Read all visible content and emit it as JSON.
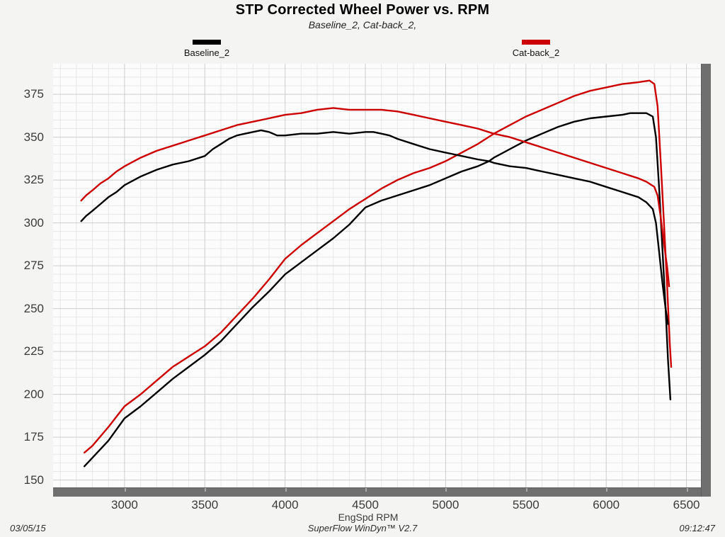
{
  "header": {
    "title": "STP Corrected Wheel Power vs. RPM",
    "subtitle": "Baseline_2, Cat-back_2,"
  },
  "legend": [
    {
      "label": "Baseline_2",
      "color": "#000000"
    },
    {
      "label": "Cat-back_2",
      "color": "#cc0000"
    }
  ],
  "axis": {
    "x_title": "EngSpd RPM"
  },
  "footer": {
    "date": "03/05/15",
    "app": "SuperFlow WinDyn™ V2.7",
    "time": "09:12:47"
  },
  "colors": {
    "baseline": "#000000",
    "catback": "#cc0000",
    "grid_minor": "#e7e7e7",
    "grid_major": "#cdcdcd",
    "axis_bar": "#6f6f6f"
  },
  "chart_data": {
    "type": "line",
    "title": "STP Corrected Wheel Power vs. RPM",
    "subtitle": "Baseline_2, Cat-back_2,",
    "xlabel": "EngSpd RPM",
    "ylabel": "",
    "xlim": [
      2555,
      6590
    ],
    "ylim": [
      145.7,
      392.8
    ],
    "x_major_ticks": [
      3000,
      3500,
      4000,
      4500,
      5000,
      5500,
      6000,
      6500
    ],
    "y_major_ticks": [
      150,
      175,
      200,
      225,
      250,
      275,
      300,
      325,
      350,
      375
    ],
    "x_minor_step": 100,
    "y_minor_step": 5,
    "grid": true,
    "legend_position": "top",
    "series": [
      {
        "name": "Baseline_2 (power curve)",
        "color": "#000000",
        "points": [
          [
            2750,
            158
          ],
          [
            2800,
            163
          ],
          [
            2900,
            173
          ],
          [
            3000,
            186
          ],
          [
            3100,
            193
          ],
          [
            3200,
            201
          ],
          [
            3300,
            209
          ],
          [
            3400,
            216
          ],
          [
            3500,
            223
          ],
          [
            3600,
            231
          ],
          [
            3700,
            241
          ],
          [
            3800,
            251
          ],
          [
            3900,
            260
          ],
          [
            4000,
            270
          ],
          [
            4100,
            277
          ],
          [
            4200,
            284
          ],
          [
            4300,
            291
          ],
          [
            4400,
            299
          ],
          [
            4500,
            309
          ],
          [
            4600,
            313
          ],
          [
            4700,
            316
          ],
          [
            4800,
            319
          ],
          [
            4900,
            322
          ],
          [
            5000,
            326
          ],
          [
            5100,
            330
          ],
          [
            5200,
            333
          ],
          [
            5270,
            336
          ],
          [
            5300,
            338
          ],
          [
            5400,
            343
          ],
          [
            5500,
            348
          ],
          [
            5600,
            352
          ],
          [
            5700,
            356
          ],
          [
            5800,
            359
          ],
          [
            5900,
            361
          ],
          [
            6000,
            362
          ],
          [
            6100,
            363
          ],
          [
            6150,
            364
          ],
          [
            6200,
            364
          ],
          [
            6250,
            364
          ],
          [
            6290,
            362
          ],
          [
            6310,
            350
          ],
          [
            6330,
            320
          ],
          [
            6350,
            285
          ],
          [
            6370,
            250
          ],
          [
            6385,
            220
          ],
          [
            6400,
            197
          ]
        ]
      },
      {
        "name": "Cat-back_2 (power curve)",
        "color": "#cc0000",
        "points": [
          [
            2750,
            166
          ],
          [
            2800,
            170
          ],
          [
            2900,
            181
          ],
          [
            3000,
            193
          ],
          [
            3100,
            200
          ],
          [
            3200,
            208
          ],
          [
            3300,
            216
          ],
          [
            3400,
            222
          ],
          [
            3500,
            228
          ],
          [
            3600,
            236
          ],
          [
            3700,
            246
          ],
          [
            3800,
            256
          ],
          [
            3900,
            267
          ],
          [
            4000,
            279
          ],
          [
            4100,
            287
          ],
          [
            4200,
            294
          ],
          [
            4300,
            301
          ],
          [
            4400,
            308
          ],
          [
            4500,
            314
          ],
          [
            4600,
            320
          ],
          [
            4700,
            325
          ],
          [
            4800,
            329
          ],
          [
            4900,
            332
          ],
          [
            5000,
            336
          ],
          [
            5100,
            341
          ],
          [
            5200,
            346
          ],
          [
            5300,
            352
          ],
          [
            5400,
            357
          ],
          [
            5500,
            362
          ],
          [
            5600,
            366
          ],
          [
            5700,
            370
          ],
          [
            5800,
            374
          ],
          [
            5900,
            377
          ],
          [
            6000,
            379
          ],
          [
            6100,
            381
          ],
          [
            6200,
            382
          ],
          [
            6270,
            383
          ],
          [
            6300,
            381
          ],
          [
            6320,
            368
          ],
          [
            6340,
            335
          ],
          [
            6360,
            300
          ],
          [
            6380,
            262
          ],
          [
            6395,
            231
          ],
          [
            6405,
            216
          ]
        ]
      },
      {
        "name": "Baseline_2 (second trace)",
        "color": "#000000",
        "points": [
          [
            2730,
            301
          ],
          [
            2760,
            304
          ],
          [
            2800,
            307
          ],
          [
            2850,
            311
          ],
          [
            2900,
            315
          ],
          [
            2950,
            318
          ],
          [
            3000,
            322
          ],
          [
            3100,
            327
          ],
          [
            3200,
            331
          ],
          [
            3300,
            334
          ],
          [
            3400,
            336
          ],
          [
            3500,
            339
          ],
          [
            3550,
            343
          ],
          [
            3600,
            346
          ],
          [
            3650,
            349
          ],
          [
            3700,
            351
          ],
          [
            3750,
            352
          ],
          [
            3800,
            353
          ],
          [
            3850,
            354
          ],
          [
            3900,
            353
          ],
          [
            3950,
            351
          ],
          [
            4000,
            351
          ],
          [
            4100,
            352
          ],
          [
            4200,
            352
          ],
          [
            4300,
            353
          ],
          [
            4400,
            352
          ],
          [
            4500,
            353
          ],
          [
            4550,
            353
          ],
          [
            4600,
            352
          ],
          [
            4650,
            351
          ],
          [
            4700,
            349
          ],
          [
            4800,
            346
          ],
          [
            4900,
            343
          ],
          [
            5000,
            341
          ],
          [
            5100,
            339
          ],
          [
            5200,
            337
          ],
          [
            5270,
            336
          ],
          [
            5300,
            335
          ],
          [
            5400,
            333
          ],
          [
            5500,
            332
          ],
          [
            5600,
            330
          ],
          [
            5700,
            328
          ],
          [
            5800,
            326
          ],
          [
            5900,
            324
          ],
          [
            6000,
            321
          ],
          [
            6100,
            318
          ],
          [
            6200,
            315
          ],
          [
            6250,
            312
          ],
          [
            6290,
            308
          ],
          [
            6310,
            300
          ],
          [
            6330,
            283
          ],
          [
            6350,
            265
          ],
          [
            6370,
            250
          ],
          [
            6385,
            241
          ]
        ]
      },
      {
        "name": "Cat-back_2 (second trace)",
        "color": "#cc0000",
        "points": [
          [
            2730,
            313
          ],
          [
            2760,
            316
          ],
          [
            2800,
            319
          ],
          [
            2850,
            323
          ],
          [
            2900,
            326
          ],
          [
            2950,
            330
          ],
          [
            3000,
            333
          ],
          [
            3100,
            338
          ],
          [
            3200,
            342
          ],
          [
            3300,
            345
          ],
          [
            3400,
            348
          ],
          [
            3500,
            351
          ],
          [
            3600,
            354
          ],
          [
            3700,
            357
          ],
          [
            3800,
            359
          ],
          [
            3900,
            361
          ],
          [
            4000,
            363
          ],
          [
            4100,
            364
          ],
          [
            4200,
            366
          ],
          [
            4300,
            367
          ],
          [
            4400,
            366
          ],
          [
            4500,
            366
          ],
          [
            4600,
            366
          ],
          [
            4700,
            365
          ],
          [
            4800,
            363
          ],
          [
            4900,
            361
          ],
          [
            5000,
            359
          ],
          [
            5100,
            357
          ],
          [
            5200,
            355
          ],
          [
            5300,
            352
          ],
          [
            5400,
            350
          ],
          [
            5500,
            347
          ],
          [
            5600,
            344
          ],
          [
            5700,
            341
          ],
          [
            5800,
            338
          ],
          [
            5900,
            335
          ],
          [
            6000,
            332
          ],
          [
            6100,
            329
          ],
          [
            6200,
            326
          ],
          [
            6250,
            324
          ],
          [
            6300,
            321
          ],
          [
            6320,
            316
          ],
          [
            6340,
            303
          ],
          [
            6360,
            288
          ],
          [
            6380,
            274
          ],
          [
            6392,
            263
          ]
        ]
      }
    ]
  }
}
